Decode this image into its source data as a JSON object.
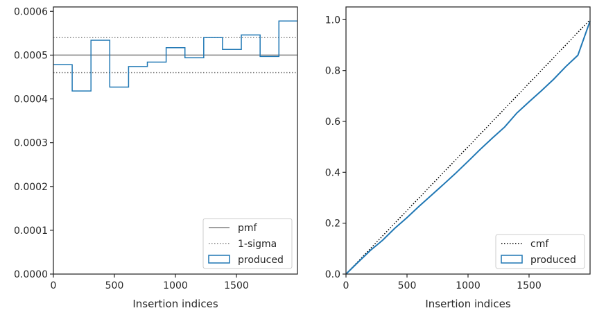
{
  "chart_data": [
    {
      "type": "line",
      "subtype": "step-histogram",
      "xlabel": "Insertion indices",
      "ylabel": "",
      "xlim": [
        0,
        2000
      ],
      "ylim": [
        0,
        0.00061
      ],
      "xticks": [
        0,
        500,
        1000,
        1500
      ],
      "xtick_labels": [
        "0",
        "500",
        "1000",
        "1500"
      ],
      "yticks": [
        0,
        0.0001,
        0.0002,
        0.0003,
        0.0004,
        0.0005,
        0.0006
      ],
      "ytick_labels": [
        "0.0000",
        "0.0001",
        "0.0002",
        "0.0003",
        "0.0004",
        "0.0005",
        "0.0006"
      ],
      "reference_lines": [
        {
          "name": "pmf",
          "y": 0.0005,
          "style": "solid",
          "color": "#808080"
        },
        {
          "name": "1-sigma",
          "y": 0.00054,
          "style": "dotted",
          "color": "#808080"
        },
        {
          "name": "1-sigma",
          "y": 0.00046,
          "style": "dotted",
          "color": "#808080"
        }
      ],
      "series": [
        {
          "name": "produced",
          "color": "#1f77b4",
          "bin_edges": [
            0,
            154,
            308,
            462,
            616,
            770,
            924,
            1078,
            1232,
            1386,
            1540,
            1694,
            1848,
            2000
          ],
          "values": [
            0.000478,
            0.000418,
            0.000534,
            0.000427,
            0.000474,
            0.000484,
            0.000517,
            0.000494,
            0.00054,
            0.000513,
            0.000546,
            0.000497,
            0.000578
          ]
        }
      ],
      "legend": {
        "placement": "lower right",
        "entries": [
          {
            "label": "pmf",
            "kind": "solid-line",
            "color": "#808080"
          },
          {
            "label": "1-sigma",
            "kind": "dotted-line",
            "color": "#808080"
          },
          {
            "label": "produced",
            "kind": "box",
            "color": "#1f77b4"
          }
        ]
      },
      "grid": false
    },
    {
      "type": "line",
      "subtype": "empirical-cdf",
      "xlabel": "Insertion indices",
      "ylabel": "",
      "xlim": [
        0,
        2000
      ],
      "ylim": [
        0,
        1.05
      ],
      "xticks": [
        0,
        500,
        1000,
        1500
      ],
      "xtick_labels": [
        "0",
        "500",
        "1000",
        "1500"
      ],
      "yticks": [
        0,
        0.2,
        0.4,
        0.6,
        0.8,
        1.0
      ],
      "ytick_labels": [
        "0.0",
        "0.2",
        "0.4",
        "0.6",
        "0.8",
        "1.0"
      ],
      "series": [
        {
          "name": "cmf",
          "style": "dotted",
          "color": "#000000",
          "x": [
            0,
            2000
          ],
          "y": [
            0,
            1.0
          ]
        },
        {
          "name": "produced",
          "color": "#1f77b4",
          "x": [
            0,
            100,
            200,
            300,
            400,
            500,
            600,
            700,
            800,
            900,
            1000,
            1100,
            1200,
            1300,
            1400,
            1500,
            1600,
            1700,
            1800,
            1900,
            2000
          ],
          "y": [
            0,
            0.047,
            0.093,
            0.133,
            0.18,
            0.222,
            0.267,
            0.31,
            0.353,
            0.397,
            0.443,
            0.49,
            0.535,
            0.578,
            0.633,
            0.677,
            0.72,
            0.765,
            0.815,
            0.86,
            0.995
          ]
        }
      ],
      "legend": {
        "placement": "lower right",
        "entries": [
          {
            "label": "cmf",
            "kind": "dotted-line",
            "color": "#000000"
          },
          {
            "label": "produced",
            "kind": "box",
            "color": "#1f77b4"
          }
        ]
      },
      "grid": false
    }
  ]
}
